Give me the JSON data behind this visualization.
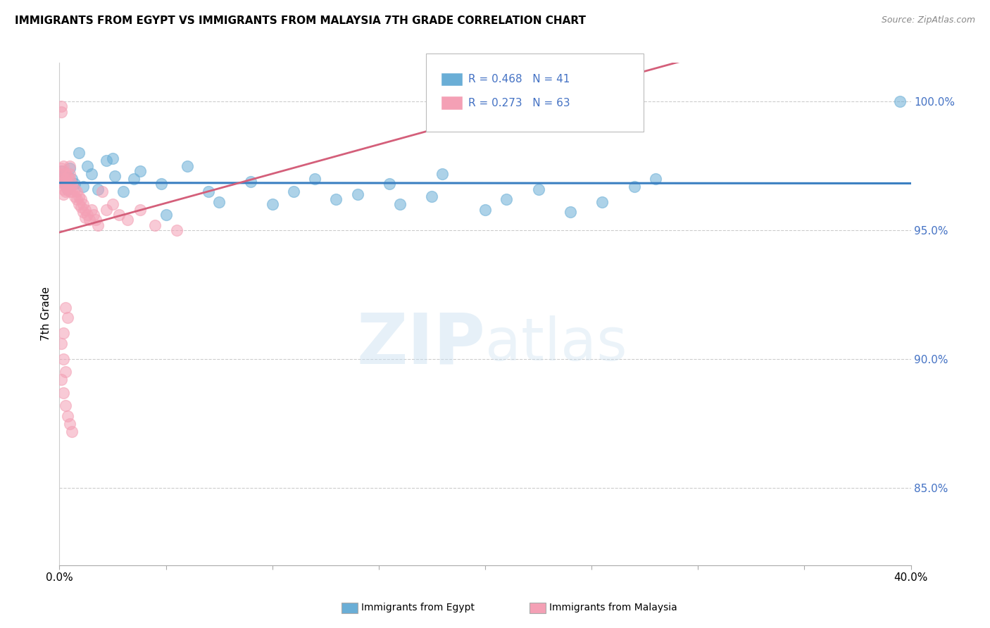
{
  "title": "IMMIGRANTS FROM EGYPT VS IMMIGRANTS FROM MALAYSIA 7TH GRADE CORRELATION CHART",
  "source": "Source: ZipAtlas.com",
  "ylabel": "7th Grade",
  "ylabel_ticks": [
    "85.0%",
    "90.0%",
    "95.0%",
    "100.0%"
  ],
  "ytick_vals": [
    0.85,
    0.9,
    0.95,
    1.0
  ],
  "xlim": [
    0.0,
    0.4
  ],
  "ylim": [
    0.82,
    1.015
  ],
  "egypt_color": "#6aaed6",
  "malaysia_color": "#f4a0b5",
  "egypt_line_color": "#3a7fc1",
  "malaysia_line_color": "#d45f7a",
  "egypt_R": 0.468,
  "egypt_N": 41,
  "malaysia_R": 0.273,
  "malaysia_N": 63,
  "watermark_zip": "ZIP",
  "watermark_atlas": "atlas",
  "egypt_x": [
    0.001,
    0.002,
    0.003,
    0.004,
    0.005,
    0.006,
    0.007,
    0.009,
    0.011,
    0.013,
    0.015,
    0.018,
    0.022,
    0.026,
    0.03,
    0.038,
    0.048,
    0.06,
    0.075,
    0.09,
    0.11,
    0.13,
    0.155,
    0.175,
    0.2,
    0.225,
    0.255,
    0.28,
    0.025,
    0.035,
    0.05,
    0.07,
    0.1,
    0.12,
    0.14,
    0.16,
    0.18,
    0.21,
    0.24,
    0.27,
    0.395
  ],
  "egypt_y": [
    0.973,
    0.971,
    0.968,
    0.966,
    0.974,
    0.97,
    0.968,
    0.98,
    0.967,
    0.975,
    0.972,
    0.966,
    0.977,
    0.971,
    0.965,
    0.973,
    0.968,
    0.975,
    0.961,
    0.969,
    0.965,
    0.962,
    0.968,
    0.963,
    0.958,
    0.966,
    0.961,
    0.97,
    0.978,
    0.97,
    0.956,
    0.965,
    0.96,
    0.97,
    0.964,
    0.96,
    0.972,
    0.962,
    0.957,
    0.967,
    1.0
  ],
  "malaysia_x": [
    0.001,
    0.001,
    0.001,
    0.001,
    0.001,
    0.002,
    0.002,
    0.002,
    0.002,
    0.002,
    0.002,
    0.003,
    0.003,
    0.003,
    0.003,
    0.004,
    0.004,
    0.004,
    0.005,
    0.005,
    0.005,
    0.005,
    0.005,
    0.006,
    0.006,
    0.007,
    0.007,
    0.008,
    0.008,
    0.009,
    0.009,
    0.01,
    0.01,
    0.011,
    0.011,
    0.012,
    0.012,
    0.013,
    0.014,
    0.015,
    0.016,
    0.017,
    0.018,
    0.02,
    0.022,
    0.025,
    0.028,
    0.032,
    0.038,
    0.045,
    0.055,
    0.003,
    0.004,
    0.002,
    0.001,
    0.002,
    0.003,
    0.001,
    0.002,
    0.003,
    0.004,
    0.005,
    0.006
  ],
  "malaysia_y": [
    0.998,
    0.996,
    0.974,
    0.972,
    0.969,
    0.975,
    0.973,
    0.97,
    0.968,
    0.966,
    0.964,
    0.972,
    0.97,
    0.967,
    0.965,
    0.971,
    0.968,
    0.966,
    0.975,
    0.972,
    0.97,
    0.967,
    0.965,
    0.968,
    0.965,
    0.966,
    0.963,
    0.965,
    0.962,
    0.963,
    0.96,
    0.962,
    0.959,
    0.96,
    0.957,
    0.958,
    0.955,
    0.956,
    0.954,
    0.958,
    0.956,
    0.954,
    0.952,
    0.965,
    0.958,
    0.96,
    0.956,
    0.954,
    0.958,
    0.952,
    0.95,
    0.92,
    0.916,
    0.91,
    0.906,
    0.9,
    0.895,
    0.892,
    0.887,
    0.882,
    0.878,
    0.875,
    0.872
  ]
}
